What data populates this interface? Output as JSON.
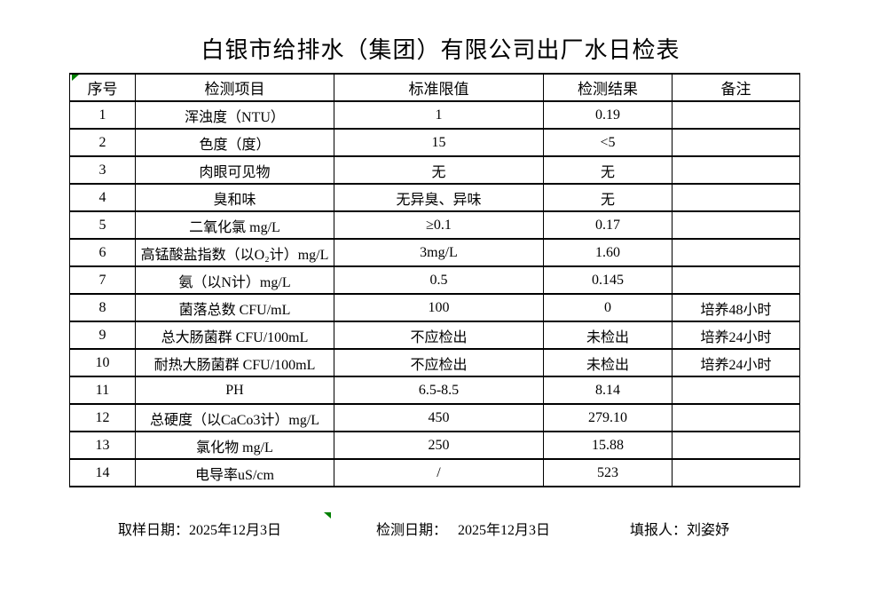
{
  "title": "白银市给排水（集团）有限公司出厂水日检表",
  "table": {
    "headers": [
      "序号",
      "检测项目",
      "标准限值",
      "检测结果",
      "备注"
    ],
    "rows": [
      [
        "1",
        "浑浊度（NTU）",
        "1",
        "0.19",
        ""
      ],
      [
        "2",
        "色度（度）",
        "15",
        "<5",
        ""
      ],
      [
        "3",
        "肉眼可见物",
        "无",
        "无",
        ""
      ],
      [
        "4",
        "臭和味",
        "无异臭、异味",
        "无",
        ""
      ],
      [
        "5",
        "二氧化氯 mg/L",
        "≥0.1",
        "0.17",
        ""
      ],
      [
        "6",
        "高锰酸盐指数（以O₂计）mg/L",
        "3mg/L",
        "1.60",
        ""
      ],
      [
        "7",
        "氨（以N计）mg/L",
        "0.5",
        "0.145",
        ""
      ],
      [
        "8",
        "菌落总数 CFU/mL",
        "100",
        "0",
        "培养48小时"
      ],
      [
        "9",
        "总大肠菌群 CFU/100mL",
        "不应检出",
        "未检出",
        "培养24小时"
      ],
      [
        "10",
        "耐热大肠菌群 CFU/100mL",
        "不应检出",
        "未检出",
        "培养24小时"
      ],
      [
        "11",
        "PH",
        "6.5-8.5",
        "8.14",
        ""
      ],
      [
        "12",
        "总硬度（以CaCo3计）mg/L",
        "450",
        "279.10",
        ""
      ],
      [
        "13",
        "氯化物 mg/L",
        "250",
        "15.88",
        ""
      ],
      [
        "14",
        "电导率uS/cm",
        "/",
        "523",
        ""
      ]
    ]
  },
  "footer": {
    "sample_date_label": "取样日期：",
    "sample_date_value": "2025年12月3日",
    "test_date_label": "检测日期：",
    "test_date_value": "2025年12月3日",
    "reporter_label": "填报人：",
    "reporter_value": "刘姿妤"
  },
  "markers": {
    "color": "#008000",
    "top_left_cell_marker": "excel-error-triangle",
    "bottom_edge_marker": "excel-error-triangle"
  }
}
